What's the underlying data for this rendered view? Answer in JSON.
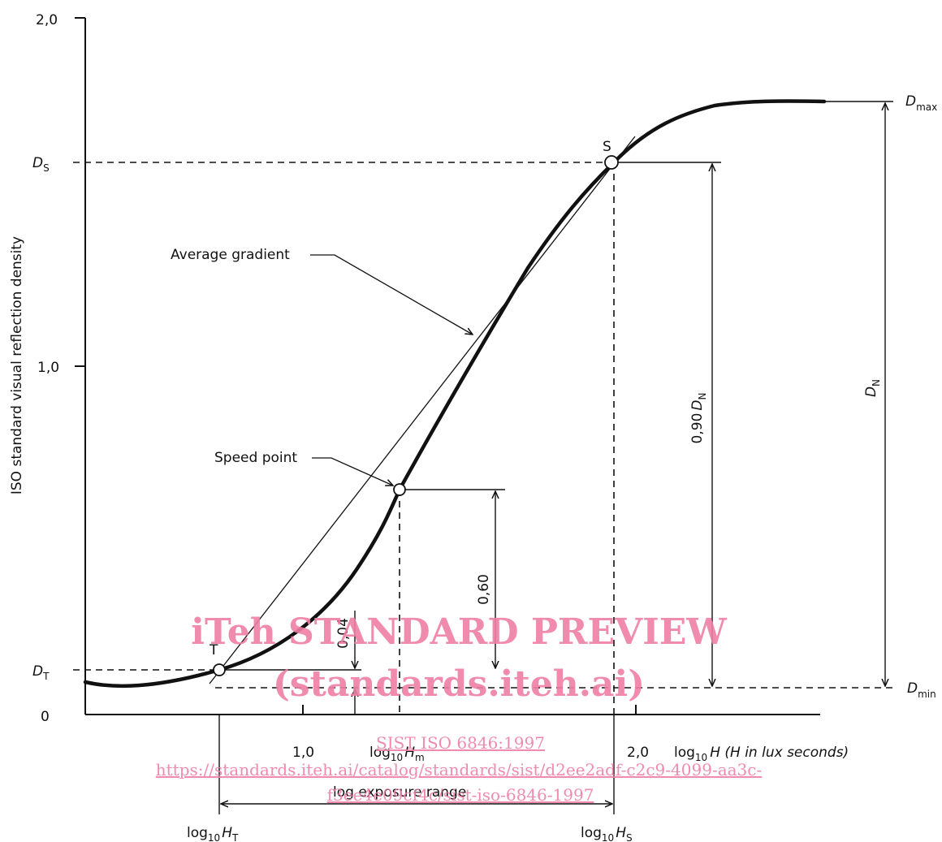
{
  "axes": {
    "y_title": "ISO standard visual reflection density",
    "y_ticks": [
      "2,0",
      "1,0",
      "0"
    ],
    "x_ticks": [
      "1,0",
      "2,0"
    ],
    "x_title": "log",
    "x_title_sub": "10",
    "x_title_rest": "H (H in lux seconds)"
  },
  "levels": {
    "ds": "D",
    "ds_sub": "S",
    "dt": "D",
    "dt_sub": "T",
    "dmax": "D",
    "dmax_sub": "max",
    "dmin": "D",
    "dmin_sub": "min"
  },
  "points": {
    "s": "S",
    "t": "T"
  },
  "labels": {
    "average_gradient": "Average gradient",
    "speed_point": "Speed point",
    "v_060": "0,60",
    "v_004": "0,04",
    "v_090": "0,90",
    "v_090_d": "D",
    "v_090_sub": "N",
    "dn": "D",
    "dn_sub": "N",
    "log_hm": "log",
    "log_hm_sub": "10",
    "log_hm_rest": "H",
    "log_hm_rest_sub": "m",
    "log_ht": "log",
    "log_ht_sub": "10",
    "log_ht_rest": "H",
    "log_ht_rest_sub": "T",
    "log_hs": "log",
    "log_hs_sub": "10",
    "log_hs_rest": "H",
    "log_hs_rest_sub": "S",
    "log_range": "log exposure range"
  },
  "watermark": {
    "line1": "iTeh STANDARD PREVIEW",
    "line2": "(standards.iteh.ai)",
    "line3": "SIST ISO 6846:1997",
    "line4": "https://standards.iteh.ai/catalog/standards/sist/d2ee2adf-c2c9-4099-aa3c-",
    "line5": "f3ee4e09cf4c/sist-iso-6846-1997"
  }
}
